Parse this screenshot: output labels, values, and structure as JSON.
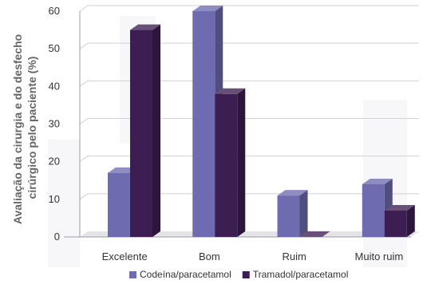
{
  "chart_data": {
    "type": "bar",
    "categories": [
      "Excelente",
      "Bom",
      "Ruim",
      "Muito ruim"
    ],
    "series": [
      {
        "name": "Codeína/paracetamol",
        "values": [
          17,
          60,
          11,
          14
        ],
        "color": "#6f6bb0"
      },
      {
        "name": "Tramadol/paracetamol",
        "values": [
          55,
          38,
          0,
          7
        ],
        "color": "#3d1e52"
      }
    ],
    "ylabel_lines": [
      "Avaliação da cirurgia e do desfecho",
      "cirúrgico pelo paciente (%)"
    ],
    "ylim": [
      0,
      60
    ],
    "yticks": [
      0,
      10,
      20,
      30,
      40,
      50,
      60
    ],
    "grid": true,
    "style": "3d-bar",
    "legend_position": "bottom"
  }
}
